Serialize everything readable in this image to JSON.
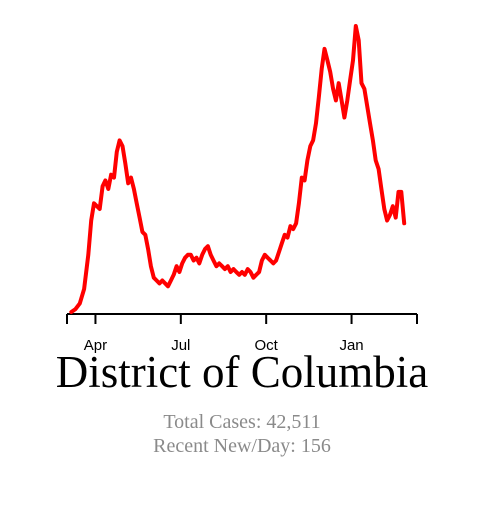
{
  "chart_data": {
    "type": "line",
    "title": "District of Columbia",
    "xlabel": "",
    "ylabel": "",
    "series_color": "#ff0000",
    "x_ticks": [
      {
        "label": "Apr",
        "month": 1
      },
      {
        "label": "Jul",
        "month": 4
      },
      {
        "label": "Oct",
        "month": 7
      },
      {
        "label": "Jan",
        "month": 10
      }
    ],
    "xlim_months": [
      0,
      12.3
    ],
    "ylim": [
      0,
      1
    ],
    "grid": false,
    "series": [
      {
        "values_relative": [
          [
            0.15,
            0.0
          ],
          [
            0.3,
            0.01
          ],
          [
            0.45,
            0.03
          ],
          [
            0.6,
            0.08
          ],
          [
            0.75,
            0.2
          ],
          [
            0.85,
            0.32
          ],
          [
            0.95,
            0.38
          ],
          [
            1.05,
            0.37
          ],
          [
            1.15,
            0.36
          ],
          [
            1.25,
            0.44
          ],
          [
            1.35,
            0.46
          ],
          [
            1.45,
            0.43
          ],
          [
            1.55,
            0.48
          ],
          [
            1.65,
            0.47
          ],
          [
            1.75,
            0.56
          ],
          [
            1.85,
            0.6
          ],
          [
            1.95,
            0.58
          ],
          [
            2.05,
            0.52
          ],
          [
            2.15,
            0.45
          ],
          [
            2.25,
            0.47
          ],
          [
            2.35,
            0.43
          ],
          [
            2.45,
            0.38
          ],
          [
            2.55,
            0.33
          ],
          [
            2.65,
            0.28
          ],
          [
            2.75,
            0.27
          ],
          [
            2.85,
            0.22
          ],
          [
            2.95,
            0.16
          ],
          [
            3.05,
            0.12
          ],
          [
            3.15,
            0.11
          ],
          [
            3.25,
            0.1
          ],
          [
            3.35,
            0.11
          ],
          [
            3.45,
            0.1
          ],
          [
            3.55,
            0.09
          ],
          [
            3.65,
            0.11
          ],
          [
            3.75,
            0.13
          ],
          [
            3.85,
            0.16
          ],
          [
            3.95,
            0.14
          ],
          [
            4.05,
            0.17
          ],
          [
            4.15,
            0.19
          ],
          [
            4.25,
            0.2
          ],
          [
            4.35,
            0.2
          ],
          [
            4.45,
            0.18
          ],
          [
            4.55,
            0.19
          ],
          [
            4.65,
            0.17
          ],
          [
            4.75,
            0.2
          ],
          [
            4.85,
            0.22
          ],
          [
            4.95,
            0.23
          ],
          [
            5.05,
            0.2
          ],
          [
            5.15,
            0.18
          ],
          [
            5.25,
            0.16
          ],
          [
            5.35,
            0.17
          ],
          [
            5.45,
            0.16
          ],
          [
            5.55,
            0.15
          ],
          [
            5.65,
            0.16
          ],
          [
            5.75,
            0.14
          ],
          [
            5.85,
            0.15
          ],
          [
            5.95,
            0.14
          ],
          [
            6.05,
            0.13
          ],
          [
            6.15,
            0.14
          ],
          [
            6.25,
            0.13
          ],
          [
            6.35,
            0.15
          ],
          [
            6.45,
            0.14
          ],
          [
            6.55,
            0.12
          ],
          [
            6.65,
            0.13
          ],
          [
            6.75,
            0.14
          ],
          [
            6.85,
            0.18
          ],
          [
            6.95,
            0.2
          ],
          [
            7.05,
            0.19
          ],
          [
            7.15,
            0.18
          ],
          [
            7.25,
            0.17
          ],
          [
            7.35,
            0.18
          ],
          [
            7.45,
            0.21
          ],
          [
            7.55,
            0.24
          ],
          [
            7.65,
            0.27
          ],
          [
            7.75,
            0.26
          ],
          [
            7.85,
            0.3
          ],
          [
            7.95,
            0.29
          ],
          [
            8.05,
            0.31
          ],
          [
            8.15,
            0.38
          ],
          [
            8.25,
            0.47
          ],
          [
            8.35,
            0.46
          ],
          [
            8.45,
            0.53
          ],
          [
            8.55,
            0.58
          ],
          [
            8.65,
            0.6
          ],
          [
            8.75,
            0.66
          ],
          [
            8.85,
            0.75
          ],
          [
            8.95,
            0.85
          ],
          [
            9.05,
            0.92
          ],
          [
            9.15,
            0.88
          ],
          [
            9.25,
            0.84
          ],
          [
            9.35,
            0.78
          ],
          [
            9.45,
            0.74
          ],
          [
            9.55,
            0.8
          ],
          [
            9.65,
            0.74
          ],
          [
            9.75,
            0.68
          ],
          [
            9.85,
            0.74
          ],
          [
            9.95,
            0.81
          ],
          [
            10.05,
            0.88
          ],
          [
            10.15,
            1.0
          ],
          [
            10.25,
            0.95
          ],
          [
            10.35,
            0.8
          ],
          [
            10.45,
            0.78
          ],
          [
            10.55,
            0.72
          ],
          [
            10.65,
            0.66
          ],
          [
            10.75,
            0.6
          ],
          [
            10.85,
            0.53
          ],
          [
            10.95,
            0.5
          ],
          [
            11.05,
            0.43
          ],
          [
            11.15,
            0.36
          ],
          [
            11.25,
            0.32
          ],
          [
            11.35,
            0.34
          ],
          [
            11.45,
            0.37
          ],
          [
            11.55,
            0.33
          ],
          [
            11.65,
            0.42
          ],
          [
            11.75,
            0.42
          ],
          [
            11.85,
            0.31
          ]
        ]
      }
    ]
  },
  "stats": {
    "total_cases": "Total Cases: 42,511",
    "recent_new_per_day": "Recent New/Day: 156"
  }
}
